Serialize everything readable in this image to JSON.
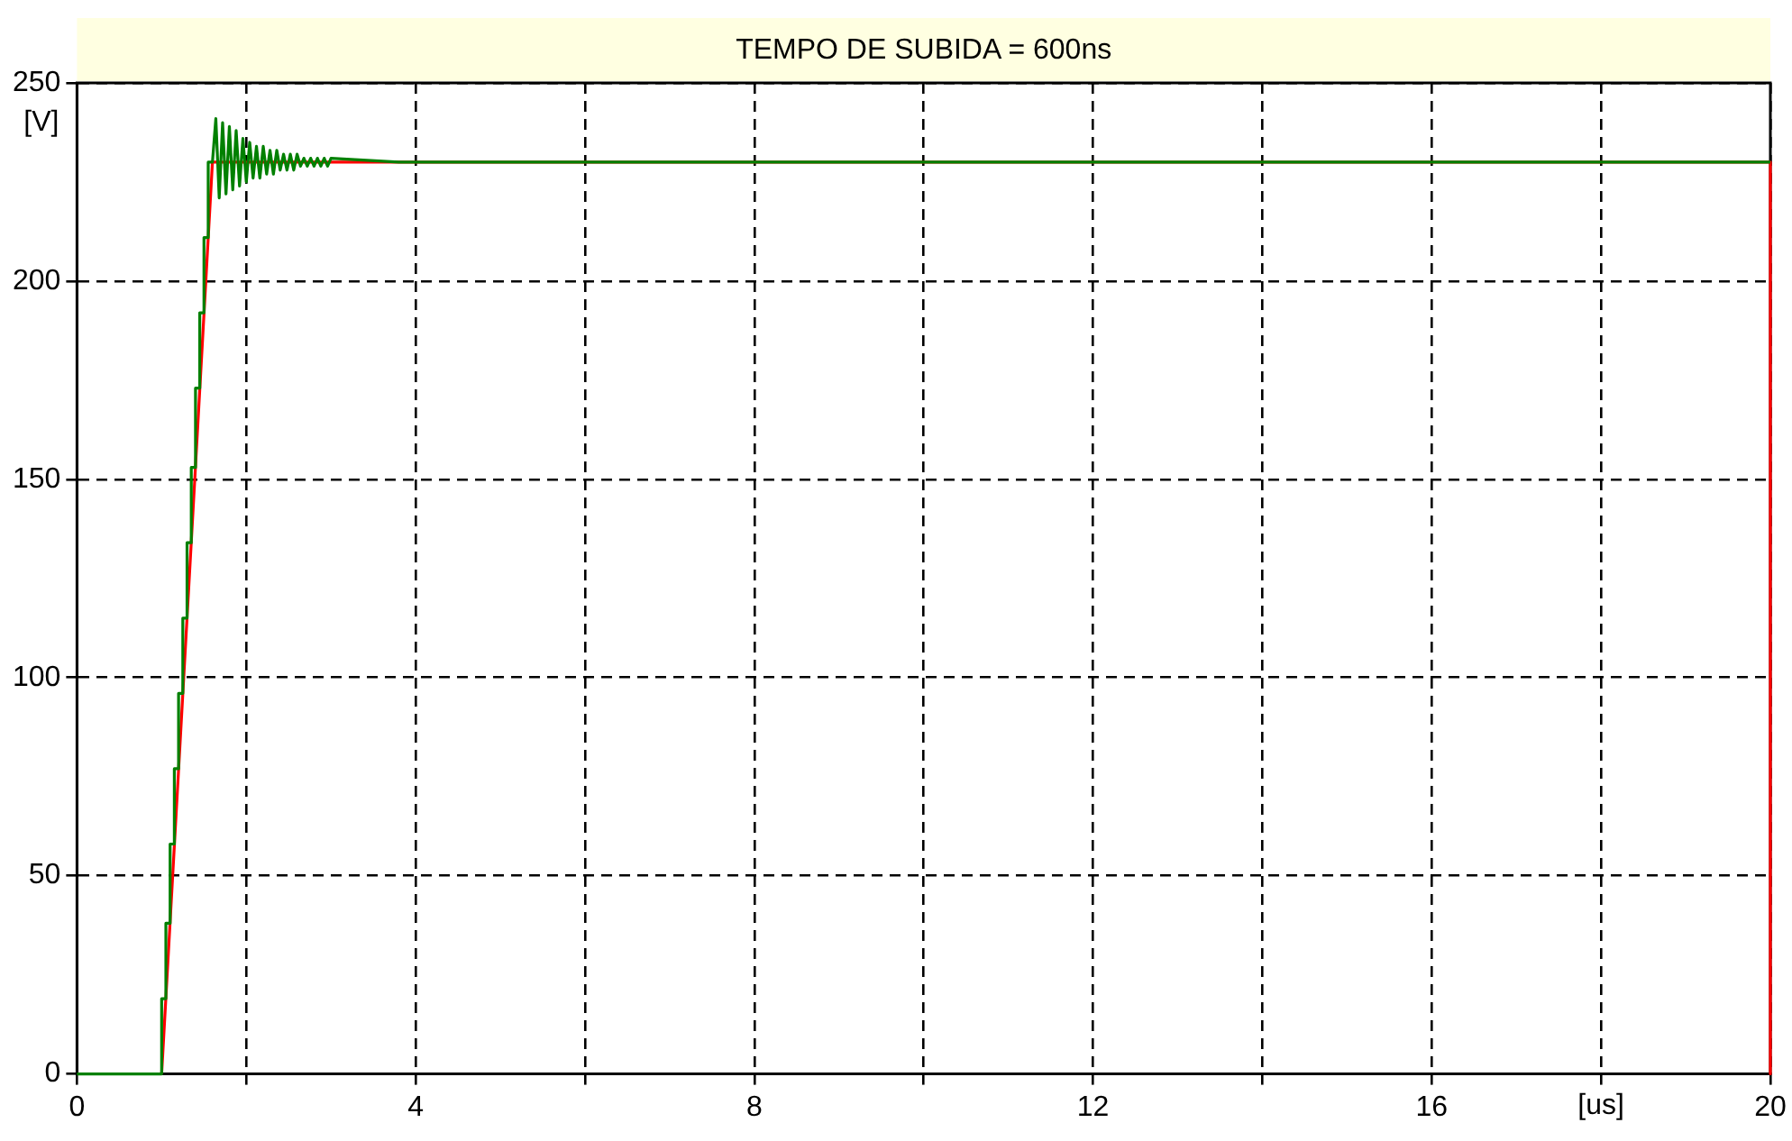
{
  "chart_data": {
    "type": "line",
    "title": "TEMPO DE SUBIDA = 600ns",
    "xlabel": "[us]",
    "ylabel": "[V]",
    "xlim": [
      0,
      20
    ],
    "ylim": [
      0,
      250
    ],
    "xticks": [
      0,
      {
        "value": 2,
        "label": null
      },
      4,
      {
        "value": 6,
        "label": null
      },
      8,
      {
        "value": 10,
        "label": null
      },
      12,
      {
        "value": 14,
        "label": null
      },
      16,
      {
        "value": 18,
        "label": null
      },
      20
    ],
    "yticks": [
      0,
      50,
      100,
      150,
      200,
      250
    ],
    "grid": true,
    "line_style": "solid",
    "series": [
      {
        "color": "#ff0000",
        "x": [
          1.0,
          1.6,
          20,
          20
        ],
        "values": [
          0,
          230,
          230,
          0
        ]
      },
      {
        "color": "#008000",
        "x": [
          0,
          1.0,
          1.0,
          1.05,
          1.05,
          1.1,
          1.1,
          1.15,
          1.15,
          1.2,
          1.2,
          1.25,
          1.25,
          1.3,
          1.3,
          1.35,
          1.35,
          1.4,
          1.4,
          1.45,
          1.45,
          1.5,
          1.5,
          1.55,
          1.55,
          1.6,
          1.64,
          1.68,
          1.72,
          1.76,
          1.8,
          1.84,
          1.88,
          1.92,
          1.96,
          2.0,
          2.04,
          2.08,
          2.12,
          2.16,
          2.2,
          2.24,
          2.28,
          2.32,
          2.36,
          2.4,
          2.44,
          2.48,
          2.52,
          2.56,
          2.6,
          2.64,
          2.68,
          2.72,
          2.76,
          2.8,
          2.84,
          2.88,
          2.92,
          2.96,
          3.0,
          3.8,
          20
        ],
        "values": [
          0,
          0,
          19,
          19,
          38,
          38,
          58,
          58,
          77,
          77,
          96,
          96,
          115,
          115,
          134,
          134,
          153,
          153,
          173,
          173,
          192,
          192,
          211,
          211,
          230,
          230,
          241,
          221,
          240,
          222,
          239,
          223,
          238,
          224,
          236,
          225,
          235,
          226,
          234,
          226,
          234,
          227,
          233,
          227,
          233,
          228,
          232,
          228,
          232,
          228,
          232,
          229,
          231,
          229,
          231,
          229,
          231,
          229,
          231,
          229,
          231,
          230,
          230
        ]
      }
    ]
  }
}
